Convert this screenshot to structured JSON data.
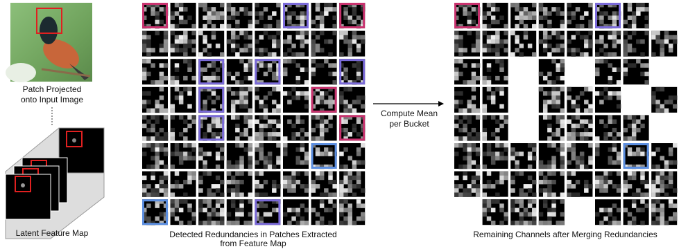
{
  "left": {
    "projection_label": [
      "Patch Projected",
      "onto Input Image"
    ],
    "feature_map_label": "Latent Feature Map"
  },
  "middle": {
    "caption": [
      "Detected Redundancies in Patches Extracted",
      "from Feature Map"
    ]
  },
  "arrow": {
    "label": [
      "Compute Mean",
      "per Bucket"
    ]
  },
  "right": {
    "caption": "Remaining Channels after Merging Redundancies"
  }
}
